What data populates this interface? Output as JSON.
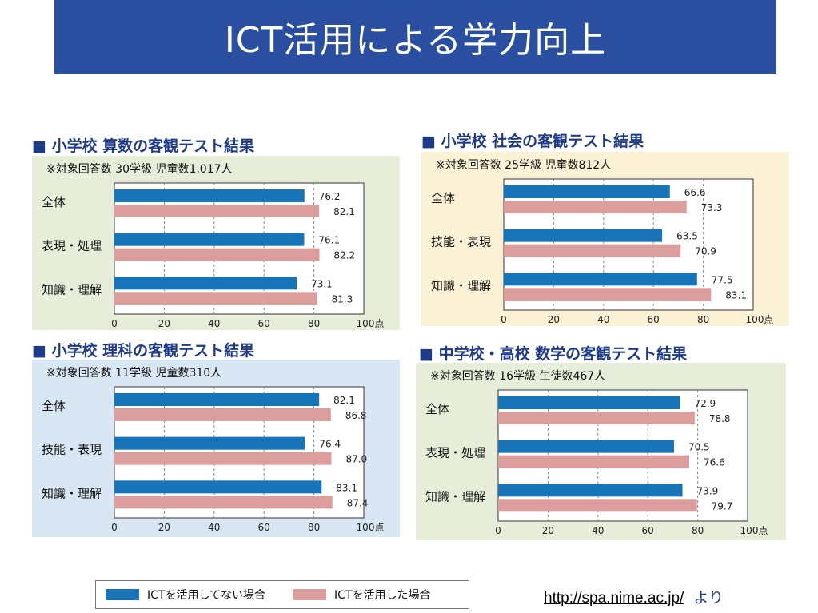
{
  "page": {
    "title": "ICT活用による学力向上"
  },
  "colors": {
    "without_ict": "#1874b9",
    "with_ict": "#dc9e9c",
    "panel_green": "#e6eed9",
    "panel_yellow": "#fbf1d4",
    "panel_blue": "#d9e6f3"
  },
  "legend": {
    "without_ict": "ICTを活用してない場合",
    "with_ict": "ICTを活用した場合"
  },
  "source": {
    "url": "http://spa.nime.ac.jp/",
    "suffix": "より"
  },
  "chart_data": [
    {
      "type": "bar",
      "heading": "■ 小学校 算数の客観テスト結果",
      "note": "※対象回答数 30学級 児童数1,017人",
      "categories": [
        "全体",
        "表現・処理",
        "知識・理解"
      ],
      "series": [
        {
          "name": "ICTを活用してない場合",
          "values": [
            76.2,
            76.1,
            73.1
          ],
          "labels": [
            "76.2",
            "76.1",
            "73.1"
          ]
        },
        {
          "name": "ICTを活用した場合",
          "values": [
            82.1,
            82.2,
            81.3
          ],
          "labels": [
            "82.1",
            "82.2",
            "81.3"
          ]
        }
      ],
      "xlim": [
        0,
        100
      ],
      "ticks": [
        "0",
        "20",
        "40",
        "60",
        "80",
        "100点"
      ]
    },
    {
      "type": "bar",
      "heading": "■ 小学校 社会の客観テスト結果",
      "note": "※対象回答数 25学級 児童数812人",
      "categories": [
        "全体",
        "技能・表現",
        "知識・理解"
      ],
      "series": [
        {
          "name": "ICTを活用してない場合",
          "values": [
            66.6,
            63.5,
            77.5
          ],
          "labels": [
            "66.6",
            "63.5",
            "77.5"
          ]
        },
        {
          "name": "ICTを活用した場合",
          "values": [
            73.3,
            70.9,
            83.1
          ],
          "labels": [
            "73.3",
            "70.9",
            "83.1"
          ]
        }
      ],
      "xlim": [
        0,
        100
      ],
      "ticks": [
        "0",
        "20",
        "40",
        "60",
        "80",
        "100点"
      ]
    },
    {
      "type": "bar",
      "heading": "■ 小学校 理科の客観テスト結果",
      "note": "※対象回答数 11学級 児童数310人",
      "categories": [
        "全体",
        "技能・表現",
        "知識・理解"
      ],
      "series": [
        {
          "name": "ICTを活用してない場合",
          "values": [
            82.1,
            76.4,
            83.1
          ],
          "labels": [
            "82.1",
            "76.4",
            "83.1"
          ]
        },
        {
          "name": "ICTを活用した場合",
          "values": [
            86.8,
            87.0,
            87.4
          ],
          "labels": [
            "86.8",
            "87.0",
            "87.4"
          ]
        }
      ],
      "xlim": [
        0,
        100
      ],
      "ticks": [
        "0",
        "20",
        "40",
        "60",
        "80",
        "100点"
      ]
    },
    {
      "type": "bar",
      "heading": "■ 中学校・高校 数学の客観テスト結果",
      "note": "※対象回答数 16学級 生徒数467人",
      "categories": [
        "全体",
        "表現・処理",
        "知識・理解"
      ],
      "series": [
        {
          "name": "ICTを活用してない場合",
          "values": [
            72.9,
            70.5,
            73.9
          ],
          "labels": [
            "72.9",
            "70.5",
            "73.9"
          ]
        },
        {
          "name": "ICTを活用した場合",
          "values": [
            78.8,
            76.6,
            79.7
          ],
          "labels": [
            "78.8",
            "76.6",
            "79.7"
          ]
        }
      ],
      "xlim": [
        0,
        100
      ],
      "ticks": [
        "0",
        "20",
        "40",
        "60",
        "80",
        "100点"
      ]
    }
  ]
}
